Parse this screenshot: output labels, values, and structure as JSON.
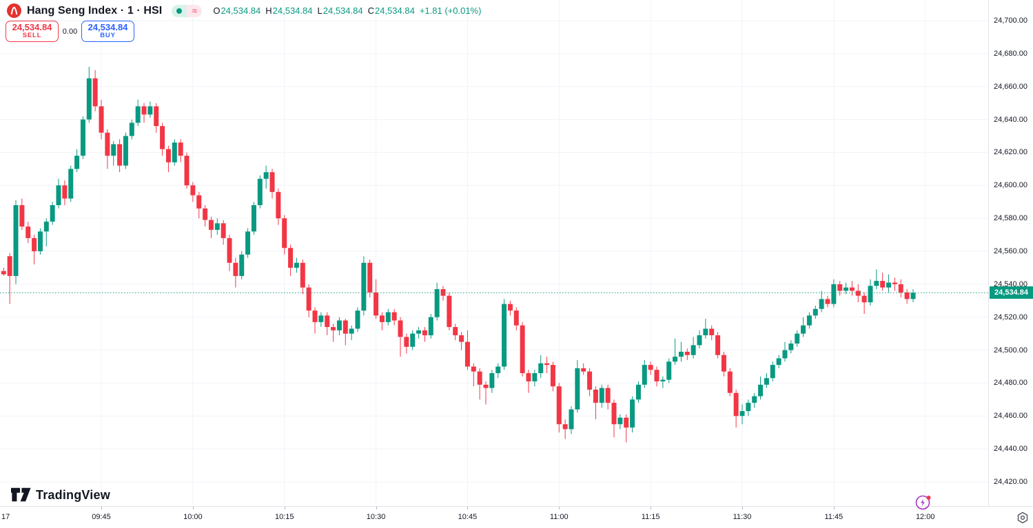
{
  "header": {
    "symbol_title": "Hang Seng Index · 1 · HSI",
    "status": {
      "approx_sign": "≈"
    },
    "ohlc": {
      "open_label": "O",
      "open": "24,534.84",
      "high_label": "H",
      "high": "24,534.84",
      "low_label": "L",
      "low": "24,534.84",
      "close_label": "C",
      "close": "24,534.84",
      "change": "+1.81 (+0.01%)"
    },
    "trade_panel": {
      "sell_price": "24,534.84",
      "sell_label": "SELL",
      "spread": "0.00",
      "buy_price": "24,534.84",
      "buy_label": "BUY"
    }
  },
  "footer": {
    "brand": "TradingView"
  },
  "colors": {
    "up": "#089981",
    "down": "#f23645",
    "sell": "#f23645",
    "buy": "#2962ff",
    "badge_bg": "#089981",
    "grid": "#f0f3fa",
    "axis_border": "#e0e3eb",
    "text": "#131722",
    "logo_red": "#e4322e",
    "lightning_purple": "#ab2fc7"
  },
  "chart_data": {
    "type": "candlestick",
    "title": "Hang Seng Index",
    "symbol": "HSI",
    "interval": "1 minute",
    "session_date_label": "17",
    "start_time": "09:29",
    "interval_minutes": 1,
    "x_axis_labels": [
      "09:45",
      "10:00",
      "10:15",
      "10:30",
      "10:45",
      "11:00",
      "11:15",
      "11:30",
      "11:45",
      "12:00"
    ],
    "y_axis_labels": [
      "24,700.00",
      "24,680.00",
      "24,660.00",
      "24,640.00",
      "24,620.00",
      "24,600.00",
      "24,580.00",
      "24,560.00",
      "24,540.00",
      "24,520.00",
      "24,500.00",
      "24,480.00",
      "24,460.00",
      "24,440.00",
      "24,420.00"
    ],
    "y_tick_values": [
      24700,
      24680,
      24660,
      24640,
      24620,
      24600,
      24580,
      24560,
      24540,
      24520,
      24500,
      24480,
      24460,
      24440,
      24420
    ],
    "y_range": [
      24412,
      24712
    ],
    "grid": true,
    "last_price_value": 24534.84,
    "last_price_label": "24,534.84",
    "candles_ohlc": [
      [
        24548,
        24550,
        24545,
        24546
      ],
      [
        24557,
        24559,
        24528,
        24545
      ],
      [
        24545,
        24591,
        24540,
        24588
      ],
      [
        24588,
        24592,
        24573,
        24575
      ],
      [
        24575,
        24578,
        24565,
        24568
      ],
      [
        24568,
        24570,
        24552,
        24560
      ],
      [
        24560,
        24574,
        24558,
        24572
      ],
      [
        24572,
        24580,
        24563,
        24578
      ],
      [
        24578,
        24590,
        24576,
        24588
      ],
      [
        24588,
        24604,
        24586,
        24600
      ],
      [
        24600,
        24603,
        24588,
        24592
      ],
      [
        24592,
        24612,
        24590,
        24610
      ],
      [
        24610,
        24622,
        24608,
        24618
      ],
      [
        24618,
        24642,
        24616,
        24640
      ],
      [
        24640,
        24672,
        24638,
        24665
      ],
      [
        24665,
        24670,
        24645,
        24648
      ],
      [
        24648,
        24652,
        24628,
        24632
      ],
      [
        24632,
        24634,
        24610,
        24618
      ],
      [
        24618,
        24627,
        24612,
        24625
      ],
      [
        24625,
        24628,
        24608,
        24612
      ],
      [
        24612,
        24632,
        24610,
        24630
      ],
      [
        24630,
        24640,
        24628,
        24638
      ],
      [
        24638,
        24652,
        24636,
        24648
      ],
      [
        24648,
        24650,
        24638,
        24643
      ],
      [
        24643,
        24651,
        24641,
        24648
      ],
      [
        24648,
        24650,
        24632,
        24636
      ],
      [
        24636,
        24638,
        24618,
        24622
      ],
      [
        24622,
        24624,
        24608,
        24614
      ],
      [
        24614,
        24628,
        24612,
        24626
      ],
      [
        24626,
        24628,
        24614,
        24618
      ],
      [
        24618,
        24620,
        24598,
        24600
      ],
      [
        24600,
        24602,
        24590,
        24594
      ],
      [
        24594,
        24596,
        24580,
        24586
      ],
      [
        24586,
        24588,
        24575,
        24579
      ],
      [
        24579,
        24581,
        24568,
        24573
      ],
      [
        24573,
        24580,
        24570,
        24577
      ],
      [
        24577,
        24579,
        24564,
        24568
      ],
      [
        24568,
        24570,
        24548,
        24553
      ],
      [
        24553,
        24556,
        24538,
        24545
      ],
      [
        24545,
        24560,
        24543,
        24558
      ],
      [
        24558,
        24574,
        24556,
        24572
      ],
      [
        24572,
        24590,
        24570,
        24588
      ],
      [
        24588,
        24606,
        24586,
        24604
      ],
      [
        24604,
        24612,
        24598,
        24608
      ],
      [
        24608,
        24610,
        24592,
        24596
      ],
      [
        24596,
        24598,
        24576,
        24580
      ],
      [
        24580,
        24582,
        24558,
        24562
      ],
      [
        24562,
        24564,
        24545,
        24550
      ],
      [
        24550,
        24556,
        24547,
        24553
      ],
      [
        24553,
        24555,
        24534,
        24538
      ],
      [
        24538,
        24540,
        24520,
        24524
      ],
      [
        24524,
        24526,
        24510,
        24517
      ],
      [
        24517,
        24523,
        24514,
        24521
      ],
      [
        24521,
        24523,
        24509,
        24514
      ],
      [
        24514,
        24516,
        24505,
        24512
      ],
      [
        24512,
        24520,
        24509,
        24518
      ],
      [
        24518,
        24519,
        24503,
        24510
      ],
      [
        24510,
        24515,
        24506,
        24513
      ],
      [
        24513,
        24526,
        24511,
        24524
      ],
      [
        24524,
        24557,
        24521,
        24553
      ],
      [
        24553,
        24555,
        24532,
        24535
      ],
      [
        24535,
        24543,
        24519,
        24521
      ],
      [
        24521,
        24523,
        24512,
        24517
      ],
      [
        24517,
        24525,
        24515,
        24523
      ],
      [
        24523,
        24525,
        24515,
        24518
      ],
      [
        24518,
        24520,
        24496,
        24508
      ],
      [
        24508,
        24510,
        24498,
        24502
      ],
      [
        24502,
        24512,
        24500,
        24510
      ],
      [
        24510,
        24514,
        24507,
        24512
      ],
      [
        24512,
        24514,
        24505,
        24509
      ],
      [
        24509,
        24522,
        24507,
        24520
      ],
      [
        24520,
        24541,
        24518,
        24537
      ],
      [
        24537,
        24539,
        24530,
        24533
      ],
      [
        24533,
        24535,
        24512,
        24514
      ],
      [
        24514,
        24516,
        24506,
        24509
      ],
      [
        24509,
        24511,
        24500,
        24505
      ],
      [
        24505,
        24512,
        24488,
        24490
      ],
      [
        24490,
        24492,
        24478,
        24487
      ],
      [
        24487,
        24489,
        24470,
        24479
      ],
      [
        24479,
        24481,
        24467,
        24477
      ],
      [
        24477,
        24488,
        24474,
        24486
      ],
      [
        24486,
        24492,
        24483,
        24490
      ],
      [
        24490,
        24531,
        24488,
        24528
      ],
      [
        24528,
        24530,
        24521,
        24524
      ],
      [
        24524,
        24526,
        24512,
        24515
      ],
      [
        24515,
        24517,
        24484,
        24486
      ],
      [
        24486,
        24488,
        24474,
        24481
      ],
      [
        24481,
        24488,
        24478,
        24486
      ],
      [
        24486,
        24497,
        24483,
        24492
      ],
      [
        24492,
        24496,
        24486,
        24491
      ],
      [
        24491,
        24493,
        24475,
        24478
      ],
      [
        24478,
        24480,
        24450,
        24455
      ],
      [
        24455,
        24458,
        24446,
        24452
      ],
      [
        24452,
        24466,
        24449,
        24464
      ],
      [
        24464,
        24494,
        24462,
        24489
      ],
      [
        24489,
        24492,
        24485,
        24487
      ],
      [
        24487,
        24489,
        24472,
        24476
      ],
      [
        24476,
        24478,
        24458,
        24468
      ],
      [
        24468,
        24479,
        24465,
        24477
      ],
      [
        24477,
        24479,
        24464,
        24468
      ],
      [
        24468,
        24470,
        24447,
        24455
      ],
      [
        24455,
        24461,
        24452,
        24459
      ],
      [
        24459,
        24461,
        24444,
        24453
      ],
      [
        24453,
        24472,
        24450,
        24470
      ],
      [
        24470,
        24481,
        24468,
        24479
      ],
      [
        24479,
        24494,
        24477,
        24491
      ],
      [
        24491,
        24493,
        24485,
        24488
      ],
      [
        24488,
        24490,
        24478,
        24481
      ],
      [
        24481,
        24484,
        24477,
        24482
      ],
      [
        24482,
        24495,
        24480,
        24493
      ],
      [
        24493,
        24507,
        24491,
        24496
      ],
      [
        24496,
        24505,
        24493,
        24499
      ],
      [
        24499,
        24501,
        24494,
        24497
      ],
      [
        24497,
        24508,
        24495,
        24503
      ],
      [
        24503,
        24512,
        24501,
        24509
      ],
      [
        24509,
        24519,
        24507,
        24513
      ],
      [
        24513,
        24515,
        24506,
        24509
      ],
      [
        24509,
        24511,
        24495,
        24497
      ],
      [
        24497,
        24499,
        24484,
        24487
      ],
      [
        24487,
        24489,
        24472,
        24474
      ],
      [
        24474,
        24476,
        24453,
        24460
      ],
      [
        24460,
        24467,
        24455,
        24463
      ],
      [
        24463,
        24470,
        24460,
        24468
      ],
      [
        24468,
        24474,
        24465,
        24472
      ],
      [
        24472,
        24484,
        24470,
        24479
      ],
      [
        24479,
        24486,
        24477,
        24483
      ],
      [
        24483,
        24493,
        24481,
        24491
      ],
      [
        24491,
        24497,
        24489,
        24495
      ],
      [
        24495,
        24505,
        24493,
        24500
      ],
      [
        24500,
        24506,
        24498,
        24504
      ],
      [
        24504,
        24512,
        24502,
        24510
      ],
      [
        24510,
        24520,
        24508,
        24515
      ],
      [
        24515,
        24523,
        24513,
        24521
      ],
      [
        24521,
        24527,
        24519,
        24525
      ],
      [
        24525,
        24536,
        24523,
        24531
      ],
      [
        24531,
        24533,
        24526,
        24528
      ],
      [
        24528,
        24543,
        24526,
        24540
      ],
      [
        24540,
        24542,
        24533,
        24536
      ],
      [
        24536,
        24541,
        24534,
        24538
      ],
      [
        24538,
        24542,
        24533,
        24536
      ],
      [
        24536,
        24540,
        24529,
        24533
      ],
      [
        24533,
        24535,
        24522,
        24529
      ],
      [
        24529,
        24543,
        24527,
        24539
      ],
      [
        24539,
        24549,
        24537,
        24542
      ],
      [
        24542,
        24547,
        24536,
        24538
      ],
      [
        24538,
        24546,
        24535,
        24541
      ],
      [
        24541,
        24544,
        24536,
        24540
      ],
      [
        24540,
        24543,
        24532,
        24535
      ],
      [
        24535,
        24537,
        24528,
        24531
      ],
      [
        24531,
        24537,
        24529,
        24534.84
      ]
    ]
  }
}
